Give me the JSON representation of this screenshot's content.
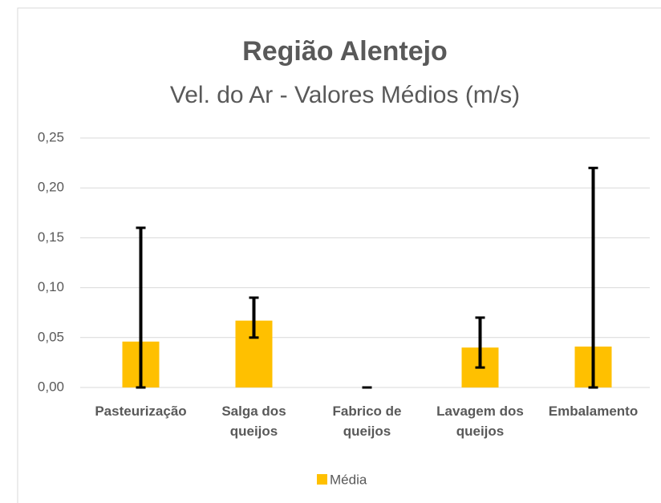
{
  "chart_data": {
    "type": "bar",
    "title": "Região Alentejo",
    "subtitle": "Vel. do Ar - Valores Médios (m/s)",
    "categories": [
      "Pasteurização",
      "Salga dos queijos",
      "Fabrico de queijos",
      "Lavagem dos queijos",
      "Embalamento"
    ],
    "series": [
      {
        "name": "Média",
        "color": "#ffc000",
        "values": [
          0.046,
          0.067,
          0,
          0.04,
          0.041
        ],
        "lower": [
          0,
          0.05,
          0,
          0.02,
          0
        ],
        "upper": [
          0.16,
          0.09,
          0,
          0.07,
          0.22
        ]
      }
    ],
    "ylim": [
      0,
      0.25
    ],
    "yticks": [
      {
        "value": 0,
        "label": "0,00"
      },
      {
        "value": 0.05,
        "label": "0,05"
      },
      {
        "value": 0.1,
        "label": "0,10"
      },
      {
        "value": 0.15,
        "label": "0,15"
      },
      {
        "value": 0.2,
        "label": "0,20"
      },
      {
        "value": 0.25,
        "label": "0,25"
      }
    ],
    "grid": true,
    "legend": "bottom"
  }
}
